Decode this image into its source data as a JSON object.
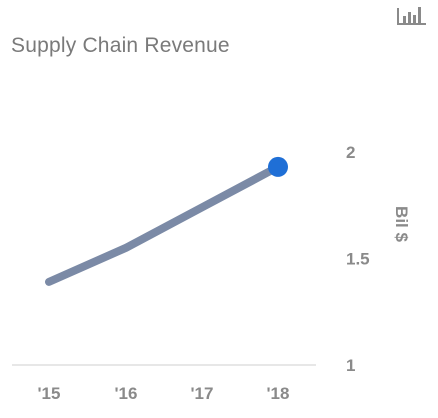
{
  "chart_data": {
    "type": "line",
    "title": "Supply Chain Revenue",
    "ylabel": "Bil $",
    "xlabel": "",
    "x": [
      "'15",
      "'16",
      "'17",
      "'18"
    ],
    "series": [
      {
        "values": [
          1.39,
          1.55,
          1.74,
          1.93
        ]
      }
    ],
    "ylim": [
      1,
      2
    ],
    "yticks": [
      "1",
      "1.5",
      "2"
    ],
    "ytick_values": [
      1,
      1.5,
      2
    ],
    "grid": false,
    "legend": "none",
    "highlight_last_point": true
  },
  "colors": {
    "line": "#7b8aa6",
    "marker": "#1f6fd6",
    "axis": "#cfcfcf",
    "text": "#8a8a8a"
  },
  "icon": "bar-chart-icon"
}
